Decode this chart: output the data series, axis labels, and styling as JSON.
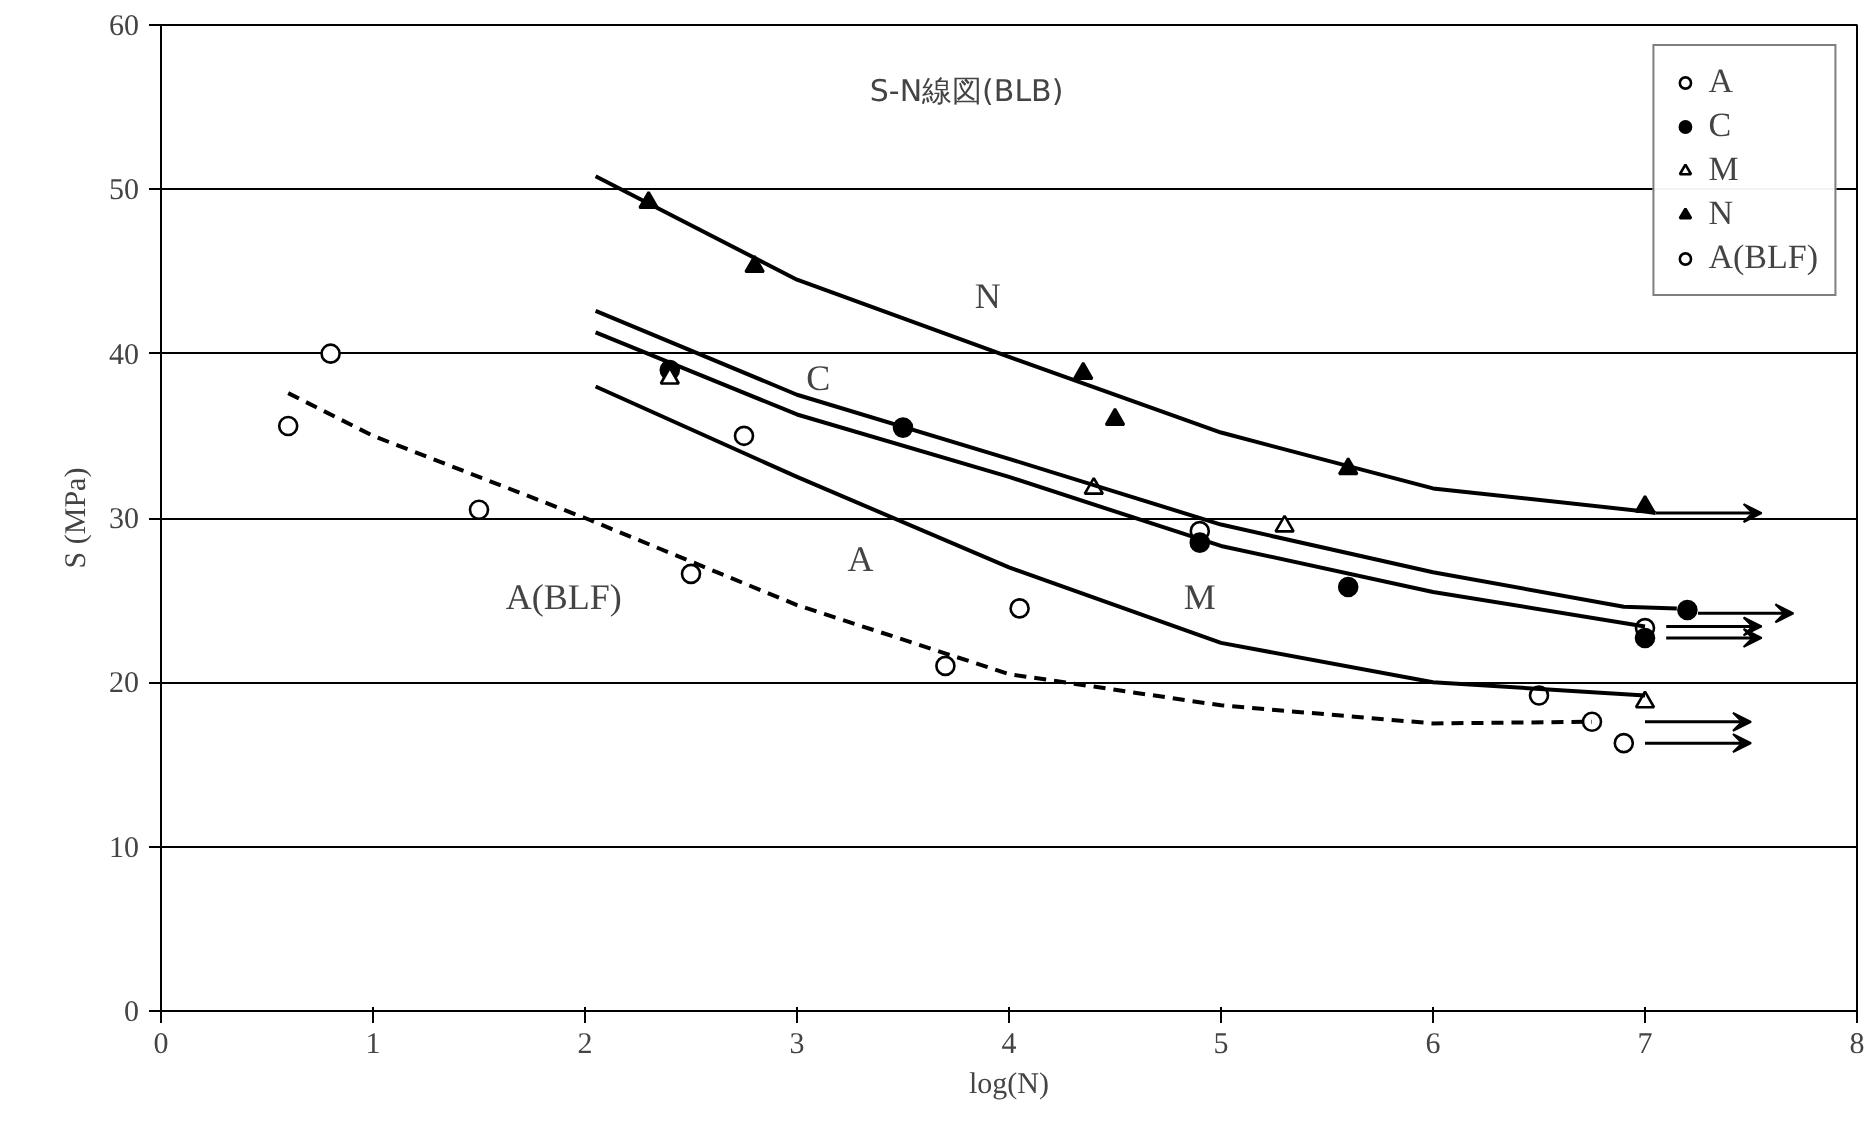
{
  "chart_data": {
    "type": "scatter",
    "title": "S-N線図(BLB)",
    "xlabel": "log(N)",
    "ylabel": "S (MPa)",
    "xlim": [
      0,
      8
    ],
    "ylim": [
      0,
      60
    ],
    "xticks": [
      0,
      1,
      2,
      3,
      4,
      5,
      6,
      7,
      8
    ],
    "yticks": [
      0,
      10,
      20,
      30,
      40,
      50,
      60
    ],
    "grid": "y",
    "legend": "top right",
    "series": [
      {
        "name": "A",
        "color": "#ffffff",
        "marker": "circle",
        "x": [
          2.75,
          4.05,
          4.9,
          6.5,
          7.0
        ],
        "values": [
          35,
          24.5,
          29.2,
          19.2,
          23.3
        ]
      },
      {
        "name": "C",
        "color": "#000000",
        "marker": "circle",
        "x": [
          2.4,
          3.5,
          4.9,
          5.6,
          7.0,
          7.2
        ],
        "values": [
          39,
          35.5,
          28.5,
          25.8,
          22.7,
          24.4
        ]
      },
      {
        "name": "M",
        "color": "#ffffff",
        "marker": "triangle",
        "x": [
          2.4,
          4.4,
          5.3,
          7.0
        ],
        "values": [
          38.5,
          31.8,
          29.5,
          18.8
        ]
      },
      {
        "name": "N",
        "color": "#000000",
        "marker": "triangle",
        "x": [
          2.3,
          2.8,
          4.35,
          4.5,
          5.6,
          7.0
        ],
        "values": [
          49.2,
          45.3,
          38.8,
          36,
          33,
          30.7
        ]
      },
      {
        "name": "A(BLF)",
        "color": "#ffffff",
        "marker": "circle",
        "x": [
          0.6,
          0.8,
          1.5,
          2.5,
          3.7,
          6.75,
          6.9
        ],
        "values": [
          35.6,
          40,
          30.5,
          26.6,
          21,
          17.6,
          16.3
        ]
      },
      {
        "type": "line",
        "color": "#000000",
        "line_style": "solid",
        "x": [
          2.05,
          3,
          4,
          5,
          6,
          7,
          7.05
        ],
        "values": [
          50.8,
          44.5,
          39.8,
          35.2,
          31.8,
          30.4,
          30.3
        ]
      },
      {
        "type": "line",
        "color": "#000000",
        "line_style": "solid",
        "x": [
          2.05,
          3,
          4,
          5,
          6,
          6.9,
          7.15
        ],
        "values": [
          42.6,
          37.5,
          33.6,
          29.6,
          26.7,
          24.6,
          24.5
        ]
      },
      {
        "type": "line",
        "color": "#000000",
        "line_style": "solid",
        "x": [
          2.05,
          3,
          4,
          5,
          6,
          7
        ],
        "values": [
          41.3,
          36.3,
          32.5,
          28.3,
          25.5,
          23.4
        ]
      },
      {
        "type": "line",
        "color": "#000000",
        "line_style": "solid",
        "x": [
          2.05,
          3,
          4,
          5,
          6,
          7
        ],
        "values": [
          38,
          32.5,
          27,
          22.4,
          20,
          19.2
        ]
      },
      {
        "type": "line",
        "color": "#000000",
        "line_style": "dashed",
        "x": [
          0.6,
          1,
          2,
          3,
          4,
          5,
          6,
          6.75
        ],
        "values": [
          37.6,
          35,
          30,
          24.7,
          20.5,
          18.6,
          17.5,
          17.6
        ]
      }
    ],
    "annotations": [
      "N",
      "C",
      "A",
      "M",
      "A(BLF)"
    ]
  }
}
